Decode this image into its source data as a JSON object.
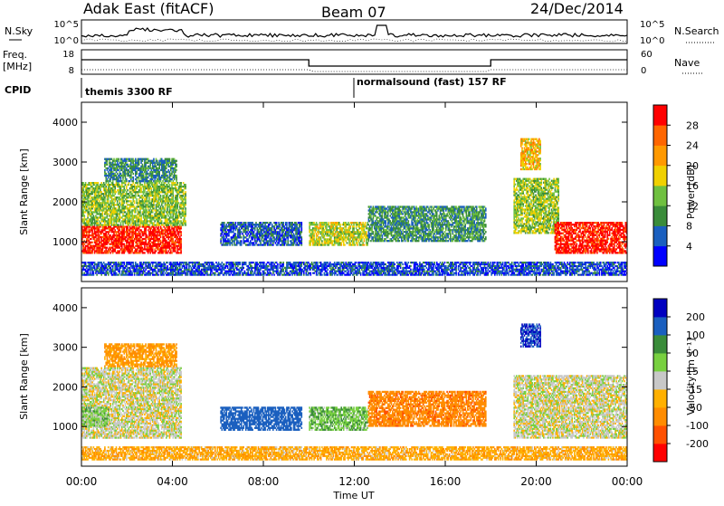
{
  "header": {
    "title": "Adak East (fitACF)",
    "beam": "Beam 07",
    "date": "24/Dec/2014"
  },
  "noise_panel": {
    "left_label": "N.Sky",
    "right_label": "N.Search",
    "left_ticks": [
      "10^5",
      "10^0"
    ],
    "right_ticks": [
      "10^5",
      "10^0"
    ]
  },
  "freq_panel": {
    "left_label_top": "Freq.",
    "left_label_bottom": "[MHz]",
    "right_label": "Nave",
    "left_ticks": [
      "18",
      "8"
    ],
    "right_ticks": [
      "60",
      "0"
    ]
  },
  "cpid_panel": {
    "label": "CPID",
    "modes": [
      "themis 3300 RF",
      "normalsound (fast) 157 RF"
    ]
  },
  "colors": {
    "power_scale": [
      "#0000ff",
      "#1a5fbf",
      "#3a8c3a",
      "#6fc040",
      "#f0d000",
      "#ff9900",
      "#ff6600",
      "#ff0000"
    ],
    "velocity_scale": [
      "#ff0000",
      "#ff5000",
      "#ff8c00",
      "#ffb000",
      "#c8c8c8",
      "#78d040",
      "#3a8c3a",
      "#1a5fbf",
      "#0000c0"
    ]
  },
  "chart_data": [
    {
      "type": "heatmap",
      "panel": "power",
      "title": "",
      "xlabel": "Time UT",
      "ylabel": "Slant Range [km]",
      "x_ticks": [
        "00:00",
        "04:00",
        "08:00",
        "12:00",
        "16:00",
        "20:00",
        "00:00"
      ],
      "y_ticks": [
        "1000",
        "2000",
        "3000",
        "4000"
      ],
      "ylim": [
        0,
        4500
      ],
      "colorbar": {
        "label": "Power [dB]",
        "ticks": [
          "4",
          "8",
          "12",
          "16",
          "20",
          "24",
          "28"
        ],
        "range": [
          0,
          32
        ]
      },
      "regions": [
        {
          "t0": 0.0,
          "t1": 4.4,
          "r0": 700,
          "r1": 1400,
          "level": 30
        },
        {
          "t0": 0.0,
          "t1": 4.6,
          "r0": 1400,
          "r1": 2500,
          "level": 14
        },
        {
          "t0": 1.0,
          "t1": 4.2,
          "r0": 2500,
          "r1": 3100,
          "level": 9
        },
        {
          "t0": 6.1,
          "t1": 9.7,
          "r0": 900,
          "r1": 1500,
          "level": 6
        },
        {
          "t0": 10.0,
          "t1": 12.6,
          "r0": 900,
          "r1": 1500,
          "level": 16
        },
        {
          "t0": 12.6,
          "t1": 17.8,
          "r0": 1000,
          "r1": 1900,
          "level": 10
        },
        {
          "t0": 19.0,
          "t1": 21.0,
          "r0": 1200,
          "r1": 2600,
          "level": 15
        },
        {
          "t0": 19.3,
          "t1": 20.2,
          "r0": 2800,
          "r1": 3600,
          "level": 20
        },
        {
          "t0": 20.8,
          "t1": 24.0,
          "r0": 700,
          "r1": 1500,
          "level": 30
        },
        {
          "t0": 0.0,
          "t1": 24.0,
          "r0": 150,
          "r1": 500,
          "level": 5
        }
      ]
    },
    {
      "type": "heatmap",
      "panel": "velocity",
      "title": "",
      "xlabel": "Time UT",
      "ylabel": "Slant Range [km]",
      "x_ticks": [
        "00:00",
        "04:00",
        "08:00",
        "12:00",
        "16:00",
        "20:00",
        "00:00"
      ],
      "y_ticks": [
        "1000",
        "2000",
        "3000",
        "4000"
      ],
      "ylim": [
        0,
        4500
      ],
      "colorbar": {
        "label": "Velocity [m s⁻¹]",
        "ticks": [
          "-200",
          "-100",
          "-50",
          "-15",
          "15",
          "50",
          "100",
          "200"
        ],
        "range": [
          -250,
          250
        ]
      },
      "regions": [
        {
          "t0": 0.0,
          "t1": 4.4,
          "r0": 700,
          "r1": 2500,
          "level": 0
        },
        {
          "t0": 0.0,
          "t1": 1.2,
          "r0": 1000,
          "r1": 1500,
          "level": 30
        },
        {
          "t0": 1.0,
          "t1": 4.2,
          "r0": 2500,
          "r1": 3100,
          "level": -60
        },
        {
          "t0": 6.1,
          "t1": 9.7,
          "r0": 900,
          "r1": 1500,
          "level": 150
        },
        {
          "t0": 10.0,
          "t1": 12.6,
          "r0": 900,
          "r1": 1500,
          "level": 40
        },
        {
          "t0": 12.6,
          "t1": 17.8,
          "r0": 1000,
          "r1": 1900,
          "level": -80
        },
        {
          "t0": 19.0,
          "t1": 24.0,
          "r0": 700,
          "r1": 2300,
          "level": 0
        },
        {
          "t0": 19.3,
          "t1": 20.2,
          "r0": 3000,
          "r1": 3600,
          "level": 200
        },
        {
          "t0": 0.0,
          "t1": 24.0,
          "r0": 150,
          "r1": 500,
          "level": -40
        }
      ]
    }
  ]
}
